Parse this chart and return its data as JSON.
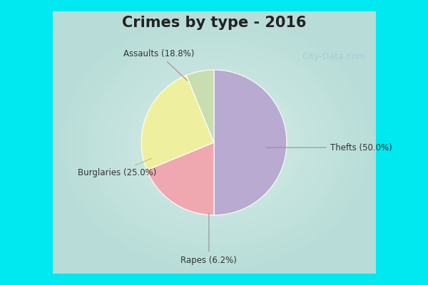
{
  "title": "Crimes by type - 2016",
  "labels": [
    "Thefts",
    "Assaults",
    "Burglaries",
    "Rapes"
  ],
  "values": [
    50.0,
    18.8,
    25.0,
    6.2
  ],
  "colors": [
    "#b8aad0",
    "#f0a8b0",
    "#eef0a0",
    "#c8ddb0"
  ],
  "label_texts": [
    "Thefts (50.0%)",
    "Assaults (18.8%)",
    "Burglaries (25.0%)",
    "Rapes (6.2%)"
  ],
  "border_color": "#00e8f0",
  "bg_color_center": "#d8ede8",
  "bg_color_edge": "#b8e0d8",
  "title_fontsize": 15,
  "title_color": "#222222",
  "watermark": "City-Data.com",
  "watermark_color": "#a8ccd4",
  "label_fontsize": 8.5,
  "label_color": "#333333"
}
